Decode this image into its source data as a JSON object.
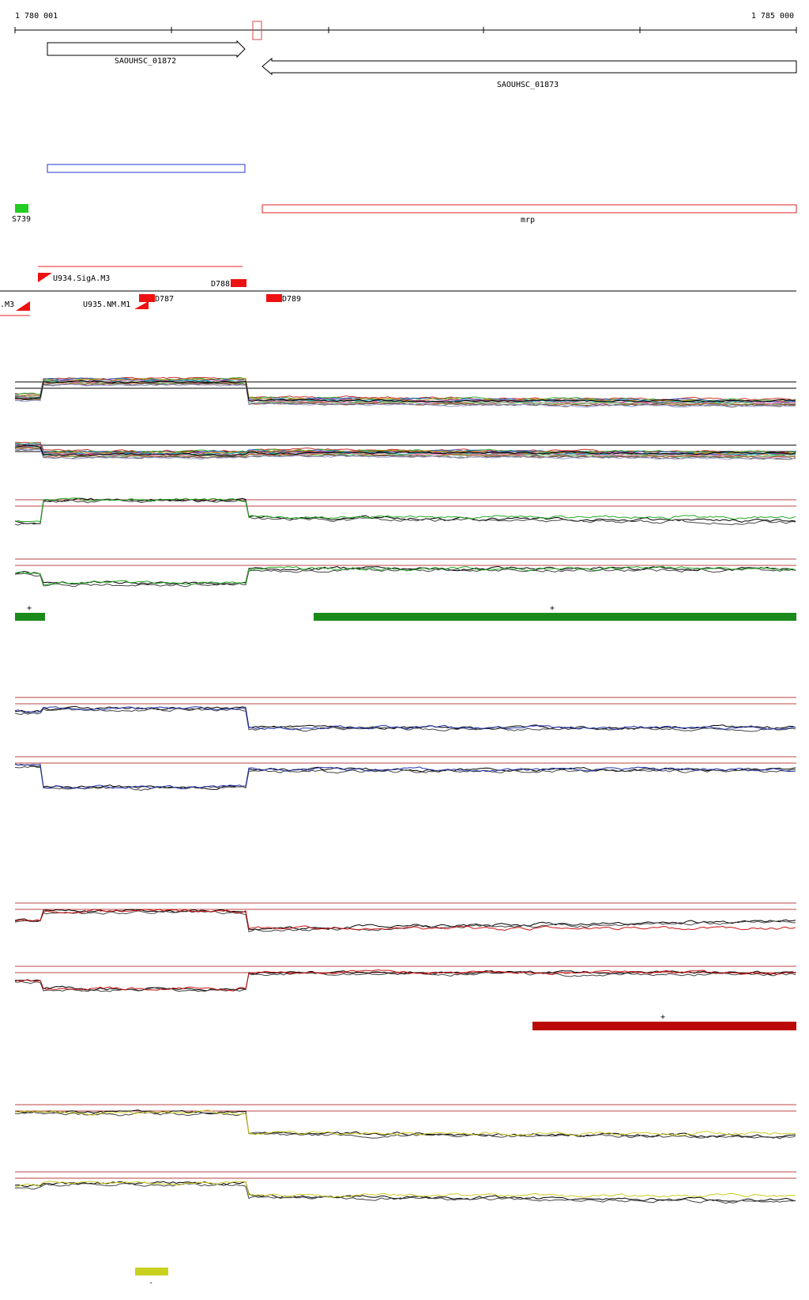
{
  "scale": {
    "start": "1 780 001",
    "end": "1 785 000"
  },
  "genes": [
    "SAOUHSC_01872",
    "SAOUHSC_01873"
  ],
  "features": {
    "green": "S739",
    "red": "mrp"
  },
  "promoters": [
    "U934.SigA.M3",
    ".M3",
    "U935.NM.M1"
  ],
  "terminators": [
    "D788",
    "D787",
    "D789"
  ],
  "strands": [
    "+",
    "+",
    "+",
    "-"
  ]
}
